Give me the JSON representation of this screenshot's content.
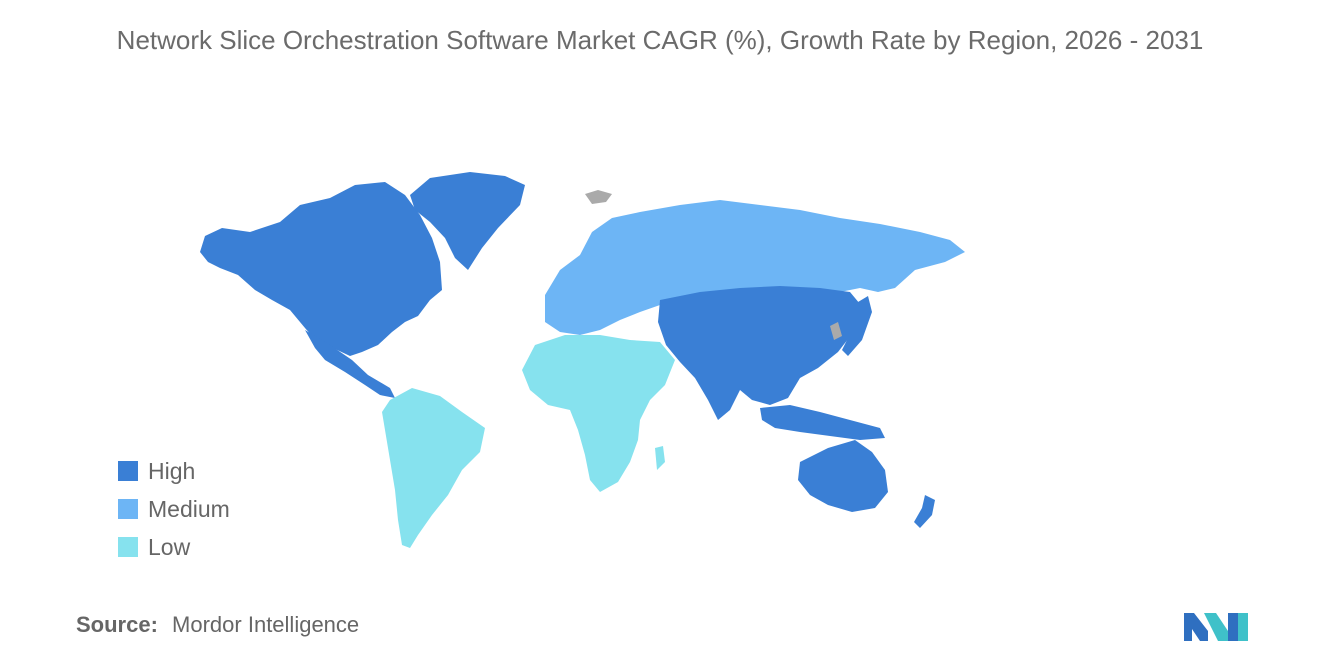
{
  "title": "Network Slice Orchestration Software Market CAGR (%), Growth Rate by Region, 2026 - 2031",
  "legend": {
    "items": [
      {
        "label": "High",
        "color": "#3a7fd5"
      },
      {
        "label": "Medium",
        "color": "#6db5f5"
      },
      {
        "label": "Low",
        "color": "#86e2ee"
      }
    ]
  },
  "map_colors": {
    "high": "#3a7fd5",
    "medium": "#6db5f5",
    "low": "#86e2ee",
    "no_data": "#aaaaaa"
  },
  "regions": [
    {
      "name": "North America",
      "level": "High"
    },
    {
      "name": "Greenland",
      "level": "High"
    },
    {
      "name": "Asia-Pacific",
      "level": "High"
    },
    {
      "name": "Australia and New Zealand",
      "level": "High"
    },
    {
      "name": "Europe and Russia",
      "level": "Medium"
    },
    {
      "name": "Latin America",
      "level": "Low"
    },
    {
      "name": "Middle East and Africa",
      "level": "Low"
    }
  ],
  "source": {
    "label": "Source:",
    "value": "Mordor Intelligence"
  },
  "logo": {
    "icon": "mordor-intelligence-logo-icon"
  }
}
